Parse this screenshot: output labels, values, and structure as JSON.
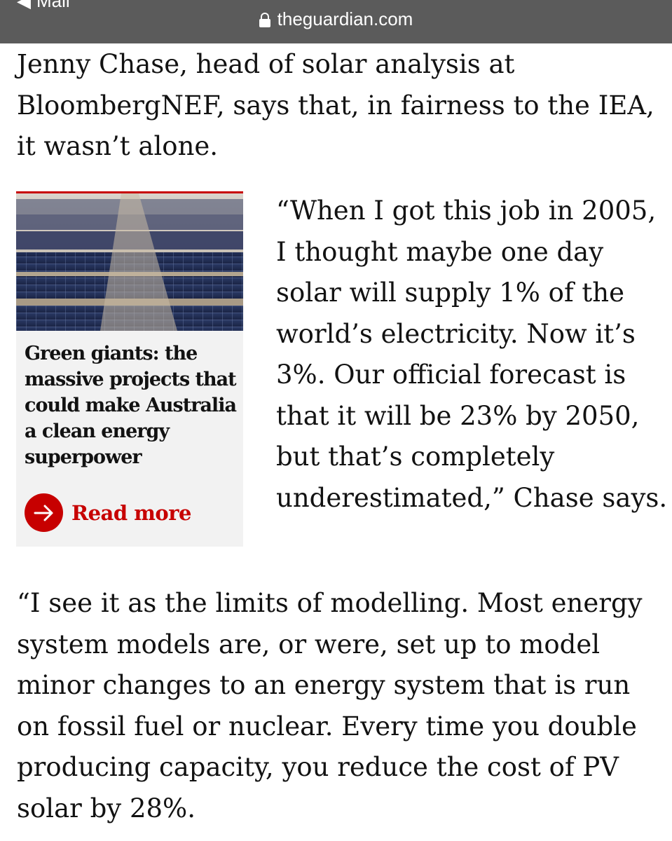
{
  "browser": {
    "back_label": "Mail",
    "url": "theguardian.com"
  },
  "article": {
    "para1": "Jenny Chase, head of solar analysis at BloombergNEF, says that, in fairness to the IEA, it wasn’t alone.",
    "para2": "“When I got this job in 2005, I thought maybe one day solar will supply 1% of the world’s electricity. Now it’s 3%. Our official forecast is that it will be 23% by 2050, but that’s completely underestimated,” Chase says.",
    "para3": "“I see it as the limits of modelling. Most energy system models are, or were, set up to model minor changes to an energy system that is run on fossil fuel or nuclear. Every time you double producing capacity, you reduce the cost of PV solar by 28%."
  },
  "related": {
    "title": "Green giants: the massive projects that could make Australia a clean energy superpower",
    "read_more": "Read more",
    "accent_color": "#c70000",
    "image_subject": "solar-farm-photo",
    "icon": "arrow-right-icon"
  }
}
